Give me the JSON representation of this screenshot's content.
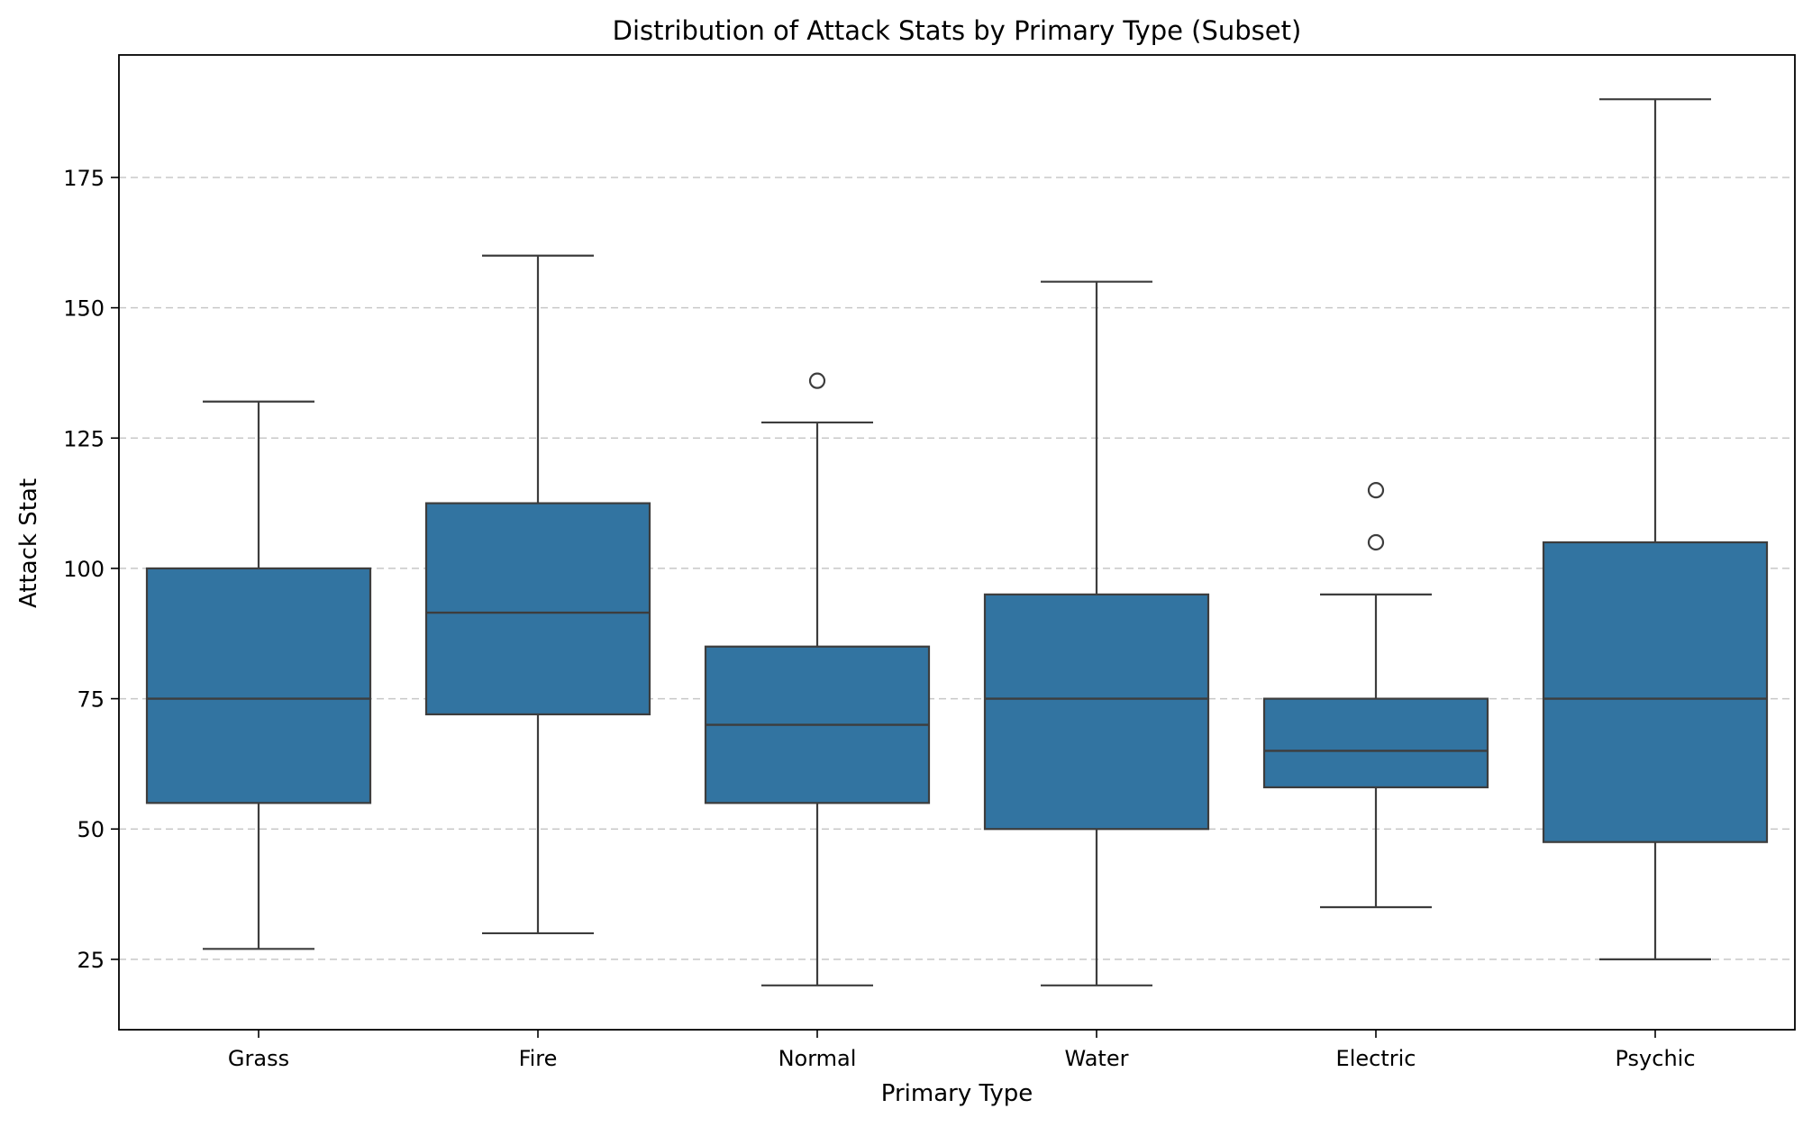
{
  "chart_data": {
    "type": "box",
    "title": "Distribution of Attack Stats by Primary Type (Subset)",
    "xlabel": "Primary Type",
    "ylabel": "Attack Stat",
    "categories": [
      "Grass",
      "Fire",
      "Normal",
      "Water",
      "Electric",
      "Psychic"
    ],
    "boxes": [
      {
        "category": "Grass",
        "whisker_low": 27,
        "q1": 55,
        "median": 75,
        "q3": 100,
        "whisker_high": 132,
        "outliers": []
      },
      {
        "category": "Fire",
        "whisker_low": 30,
        "q1": 72,
        "median": 91.5,
        "q3": 112.5,
        "whisker_high": 160,
        "outliers": []
      },
      {
        "category": "Normal",
        "whisker_low": 20,
        "q1": 55,
        "median": 70,
        "q3": 85,
        "whisker_high": 128,
        "outliers": [
          136
        ]
      },
      {
        "category": "Water",
        "whisker_low": 20,
        "q1": 50,
        "median": 75,
        "q3": 95,
        "whisker_high": 155,
        "outliers": []
      },
      {
        "category": "Electric",
        "whisker_low": 35,
        "q1": 58,
        "median": 65,
        "q3": 75,
        "whisker_high": 95,
        "outliers": [
          105,
          115
        ]
      },
      {
        "category": "Psychic",
        "whisker_low": 25,
        "q1": 47.5,
        "median": 75,
        "q3": 105,
        "whisker_high": 190,
        "outliers": []
      }
    ],
    "ylim": [
      11.5,
      198.5
    ],
    "yticks": [
      25,
      50,
      75,
      100,
      125,
      150,
      175
    ],
    "grid": {
      "y": true,
      "x": false,
      "style": "dashed"
    },
    "colors": {
      "box_fill": "#3274a1",
      "box_edge": "#3d3d3d",
      "grid": "#c8c8c8",
      "axis": "#000000"
    }
  }
}
